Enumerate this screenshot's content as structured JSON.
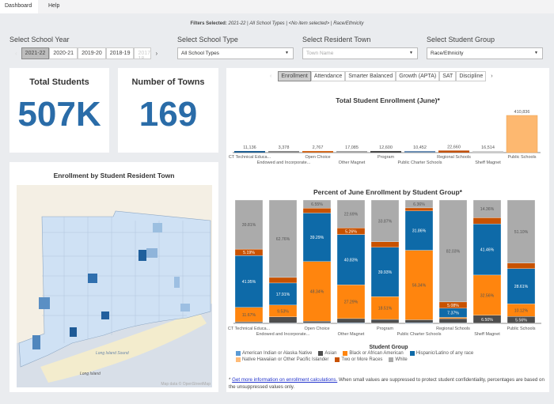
{
  "nav": {
    "tabs": [
      "Dashboard",
      "Help"
    ]
  },
  "filters": {
    "label": "Filters Selected:",
    "year": "2021-22",
    "type": "All School Types",
    "town": "<No item selected>",
    "group": "Race/Ethnicity"
  },
  "controls": {
    "year_label": "Select School Year",
    "years": [
      "2021-22",
      "2020-21",
      "2019-20",
      "2018-19",
      "2017-18"
    ],
    "selected_year": "2021-22",
    "type_label": "Select School Type",
    "type_value": "All School Types",
    "town_label": "Select Resident Town",
    "town_placeholder": "Town Name",
    "group_label": "Select Student Group",
    "group_value": "Race/Ethnicity"
  },
  "kpis": {
    "students_title": "Total Students",
    "students_value": "507K",
    "towns_title": "Number of Towns",
    "towns_value": "169"
  },
  "map": {
    "title": "Enrollment by Student Resident Town",
    "sound_label": "Long Island Sound",
    "island_label": "Long Island",
    "attribution": "Map data © OpenStreetMap"
  },
  "tabs": [
    "Enrollment",
    "Attendance",
    "Smarter Balanced",
    "Growth (APTA)",
    "SAT",
    "Discipline"
  ],
  "selected_tab": "Enrollment",
  "chart_data": [
    {
      "type": "bar",
      "title": "Total Student Enrollment (June)*",
      "categories": [
        "CT Technical Educa...",
        "Endowed and Incorporate...",
        "Open Choice",
        "Other Magnet",
        "Program",
        "Public Charter Schools",
        "Regional Schools",
        "Sheff Magnet",
        "Public Schools"
      ],
      "values": [
        11136,
        3378,
        2767,
        17085,
        12600,
        10452,
        22660,
        16514,
        410836
      ],
      "value_labels": [
        "11,136",
        "3,378",
        "2,767",
        "17,085",
        "12,600",
        "10,452",
        "22,660",
        "16,514",
        "410,836"
      ],
      "colors": [
        "#1f5f93",
        "#8a8a8a",
        "#d2691e",
        "#a5a5a5",
        "#4a4a4a",
        "#6d8fb3",
        "#c1500c",
        "#cfcfcf",
        "#fdb870"
      ],
      "grid": false
    },
    {
      "type": "bar",
      "stacked": true,
      "percent": true,
      "title": "Percent of June Enrollment by Student Group*",
      "categories": [
        "CT Technical Educa...",
        "Endowed and Incorporate...",
        "Open Choice",
        "Other Magnet",
        "Program",
        "Public Charter Schools",
        "Regional Schools",
        "Sheff Magnet",
        "Public Schools"
      ],
      "legend_title": "Student Group",
      "legend_position": "bottom",
      "series": [
        {
          "name": "American Indian or Alaska Native",
          "color": "#5b9bd5",
          "values": [
            0.3,
            0.3,
            0.3,
            0.4,
            0.2,
            0.4,
            0.3,
            0.1,
            0.1
          ],
          "labels": [
            null,
            null,
            null,
            null,
            null,
            null,
            null,
            null,
            null
          ]
        },
        {
          "name": "Asian",
          "color": "#4d4d4d",
          "values": [
            1.0,
            5.0,
            1.5,
            3.5,
            3.0,
            2.5,
            3.5,
            6.5,
            5.56
          ],
          "labels": [
            null,
            null,
            null,
            null,
            null,
            null,
            null,
            "6.50%",
            "5.56%"
          ]
        },
        {
          "name": "Black or African American",
          "color": "#ff850e",
          "values": [
            11.67,
            9.53,
            48.34,
            27.29,
            18.51,
            56.34,
            1.0,
            32.56,
            10.12
          ],
          "labels": [
            "11.67%",
            "9.53%",
            "48.34%",
            "27.29%",
            "18.51%",
            "56.34%",
            null,
            "32.56%",
            "10.12%"
          ]
        },
        {
          "name": "Hispanic/Latino of any race",
          "color": "#0e6aa8",
          "values": [
            41.95,
            17.91,
            39.29,
            40.83,
            39.93,
            31.86,
            7.37,
            41.46,
            28.61
          ],
          "labels": [
            "41.95%",
            "17.91%",
            "39.29%",
            "40.83%",
            "39.93%",
            "31.86%",
            "7.37%",
            "41.46%",
            "28.61%"
          ]
        },
        {
          "name": "Native Hawaiian or Other Pacific Islander",
          "color": "#ffbc79",
          "values": [
            0.1,
            0.0,
            0.0,
            0.1,
            0.0,
            0.0,
            0.0,
            0.0,
            0.0
          ],
          "labels": [
            null,
            null,
            null,
            null,
            null,
            null,
            null,
            null,
            null
          ]
        },
        {
          "name": "Two or More Races",
          "color": "#c85200",
          "values": [
            5.19,
            4.5,
            4.0,
            5.26,
            4.5,
            2.5,
            5.08,
            5.0,
            4.5
          ],
          "labels": [
            "5.19%",
            null,
            null,
            "5.26%",
            null,
            null,
            "5.08%",
            null,
            null
          ]
        },
        {
          "name": "White",
          "color": "#ababab",
          "values": [
            39.81,
            62.76,
            6.55,
            22.69,
            33.87,
            6.36,
            82.03,
            14.36,
            51.1
          ],
          "labels": [
            "39.81%",
            "62.76%",
            "6.55%",
            "22.69%",
            "33.87%",
            "6.36%",
            "82.03%",
            "14.36%",
            "51.10%"
          ]
        }
      ]
    }
  ],
  "footnote": {
    "star": "* ",
    "link": "Get more information on enrollment calculations.",
    "text": " When small values are suppressed to protect student confidentiality, percentages are based on the unsuppressed values only."
  }
}
